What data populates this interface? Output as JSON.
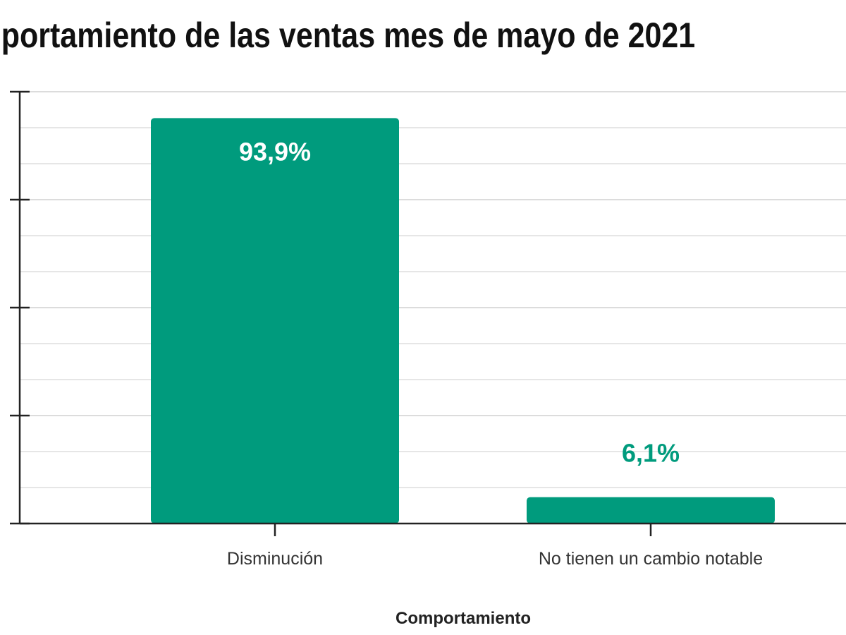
{
  "chart_data": {
    "type": "bar",
    "title": "portamiento de las ventas mes de mayo de 2021",
    "xlabel": "Comportamiento",
    "ylabel": "",
    "categories": [
      "Disminución",
      "No tienen un cambio notable"
    ],
    "values": [
      93.9,
      6.1
    ],
    "data_labels": [
      "93,9%",
      "6,1%"
    ],
    "ylim": [
      0,
      100
    ],
    "y_major_ticks": [
      0,
      25,
      50,
      75,
      100
    ],
    "y_tick_labels_visible": false,
    "grid": true,
    "bar_color": "#009B7D",
    "inside_label_color": "#FFFFFF",
    "outside_label_color": "#009B7D"
  }
}
